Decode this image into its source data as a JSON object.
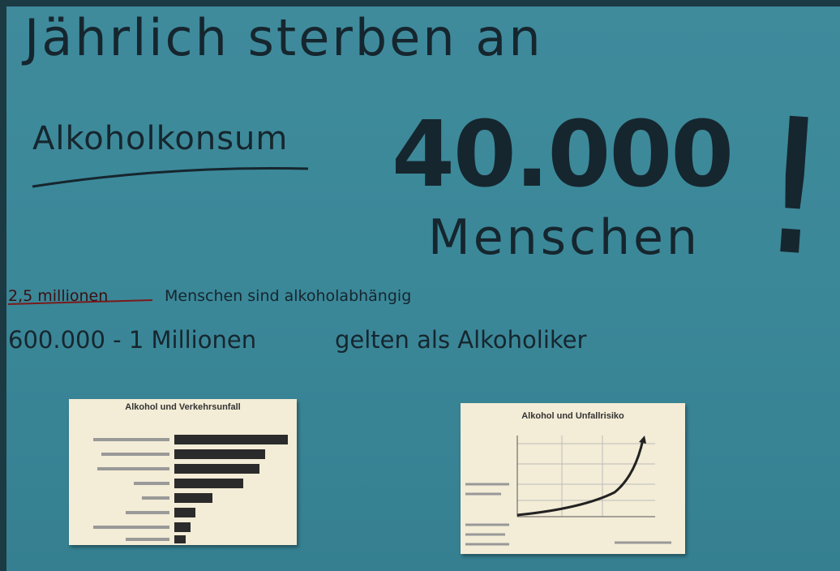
{
  "poster": {
    "headline": "Jährlich sterben an",
    "subject": "Alkoholkonsum",
    "number": "40.000",
    "people": "Menschen",
    "exclamation": "!",
    "line1_highlight": "2,5 millionen",
    "line1_rest": "Menschen sind alkoholabhängig",
    "line2_part1": "600.000 - 1 Millionen",
    "line2_part2": "gelten als Alkoholiker",
    "chart_left_title": "Alkohol und Verkehrsunfall",
    "chart_right_title": "Alkohol und Unfallrisiko"
  }
}
